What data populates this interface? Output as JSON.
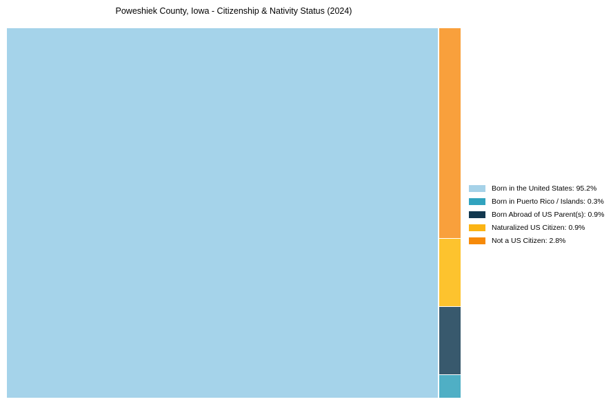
{
  "title": "Poweshiek County, Iowa - Citizenship & Nativity Status (2024)",
  "background_color": "#ffffff",
  "chart_data": {
    "type": "treemap",
    "title": "Poweshiek County, Iowa - Citizenship & Nativity Status (2024)",
    "unit": "%",
    "legend_position": "right",
    "grid": false,
    "segments": [
      {
        "label": "Born in the United States",
        "value": 95.2,
        "legend_label": "Born in the United States: 95.2%",
        "color": "#A5D3EA",
        "legend_color": "#A6D2E8",
        "placement": "main"
      },
      {
        "label": "Born in Puerto Rico / Islands",
        "value": 0.3,
        "legend_label": "Born in Puerto Rico / Islands: 0.3%",
        "color": "#4FAFC5",
        "legend_color": "#31A3BE",
        "placement": "column"
      },
      {
        "label": "Born Abroad of US Parent(s)",
        "value": 0.9,
        "legend_label": "Born Abroad of US Parent(s): 0.9%",
        "color": "#38596D",
        "legend_color": "#12384F",
        "placement": "column"
      },
      {
        "label": "Naturalized US Citizen",
        "value": 0.9,
        "legend_label": "Naturalized US Citizen: 0.9%",
        "color": "#FDC32E",
        "legend_color": "#FBB414",
        "placement": "column"
      },
      {
        "label": "Not a US Citizen",
        "value": 2.8,
        "legend_label": "Not a US Citizen: 2.8%",
        "color": "#F9A03C",
        "legend_color": "#F68A0A",
        "placement": "column"
      }
    ],
    "column_top_to_bottom": [
      "Not a US Citizen",
      "Naturalized US Citizen",
      "Born Abroad of US Parent(s)",
      "Born in Puerto Rico / Islands"
    ]
  }
}
